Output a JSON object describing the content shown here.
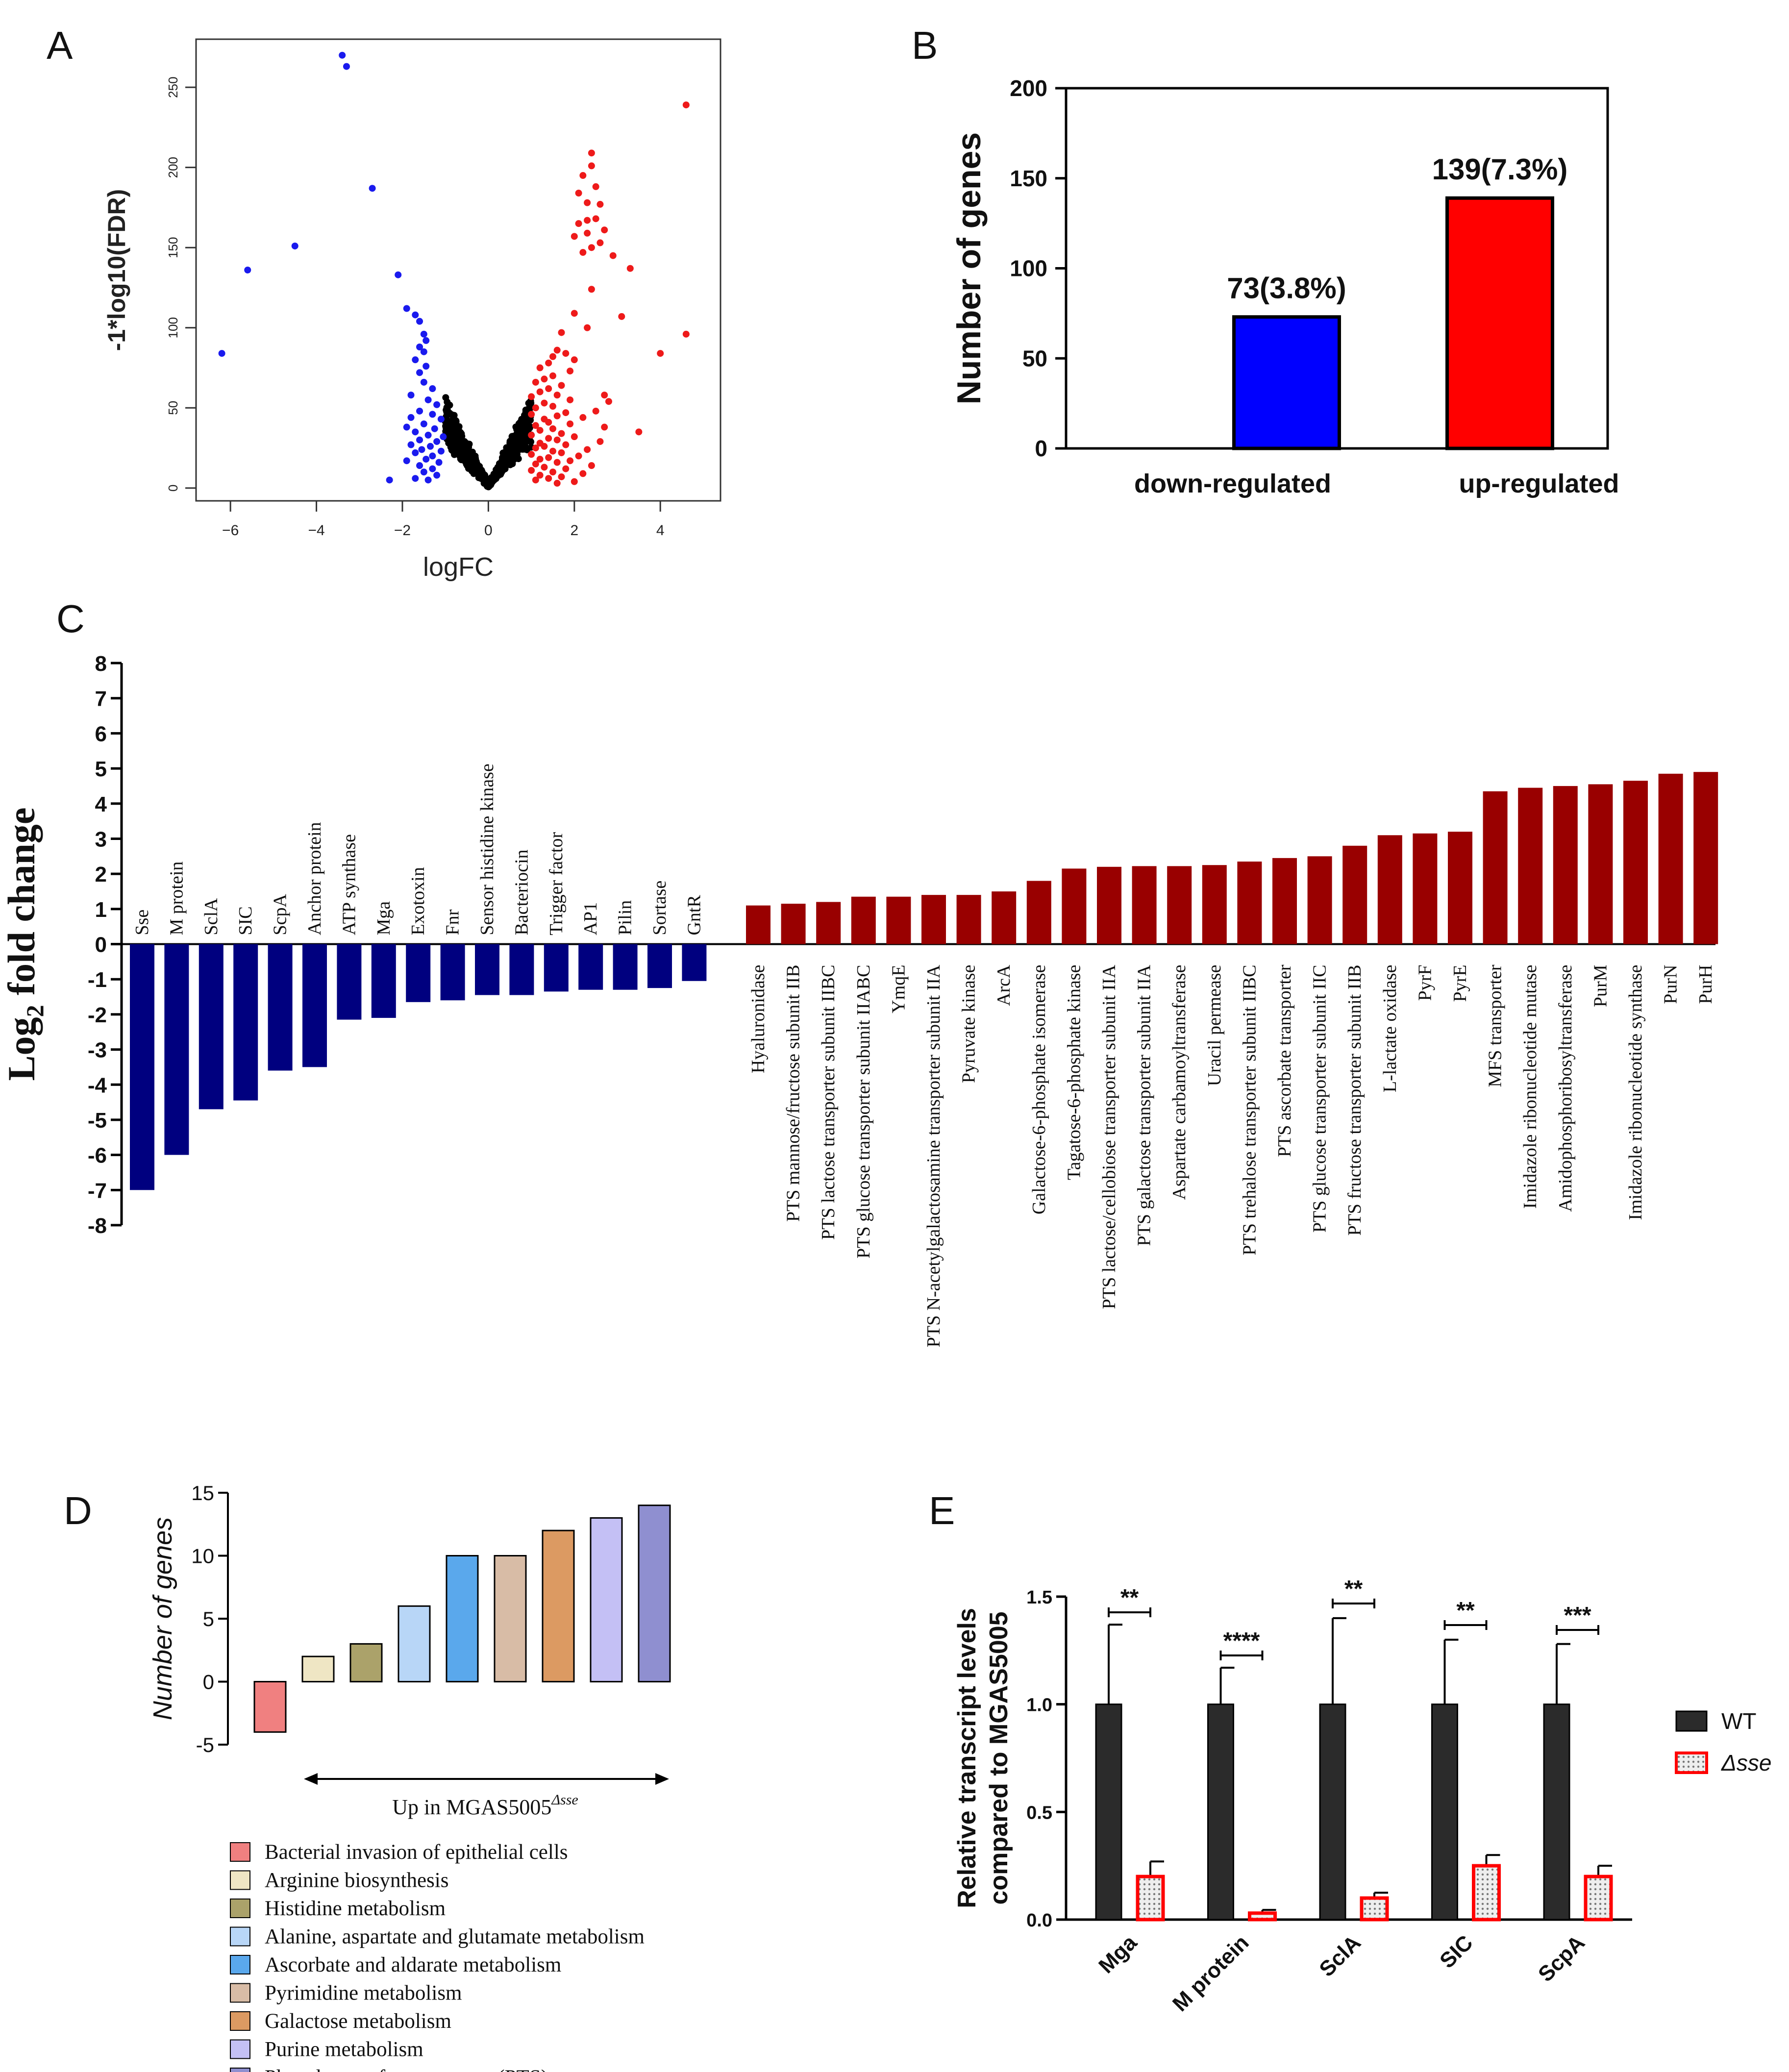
{
  "chart_data": [
    {
      "panel": "A",
      "type": "scatter",
      "xlabel": "logFC",
      "ylabel": "-1*log10(FDR)",
      "xlim": [
        -6.8,
        5.4
      ],
      "ylim": [
        -8,
        280
      ],
      "xticks": [
        -6,
        -4,
        -2,
        0,
        2,
        4
      ],
      "xtick_labels": [
        "−6",
        "−4",
        "−2",
        "0",
        "2",
        "4"
      ],
      "yticks": [
        0,
        50,
        100,
        150,
        200,
        250
      ],
      "ytick_labels": [
        "0",
        "50",
        "100",
        "150",
        "200",
        "250"
      ],
      "colors": {
        "down": "#1a1aee",
        "up": "#ee1a1a",
        "ns": "#000000"
      },
      "series": [
        {
          "name": "down",
          "points": [
            [
              -3.4,
              270
            ],
            [
              -3.3,
              263
            ],
            [
              -2.7,
              187
            ],
            [
              -4.5,
              151
            ],
            [
              -5.6,
              136
            ],
            [
              -6.2,
              84
            ],
            [
              -2.1,
              133
            ],
            [
              -2.3,
              5
            ],
            [
              -1.9,
              112
            ],
            [
              -1.7,
              108
            ],
            [
              -1.6,
              104
            ],
            [
              -1.5,
              96
            ],
            [
              -1.45,
              92
            ],
            [
              -1.6,
              88
            ],
            [
              -1.5,
              85
            ],
            [
              -1.7,
              80
            ],
            [
              -1.45,
              76
            ],
            [
              -1.6,
              72
            ],
            [
              -1.5,
              66
            ],
            [
              -1.3,
              62
            ],
            [
              -1.8,
              58
            ],
            [
              -1.4,
              55
            ],
            [
              -1.2,
              52
            ],
            [
              -1.6,
              48
            ],
            [
              -1.3,
              46
            ],
            [
              -1.8,
              44
            ],
            [
              -1.1,
              43
            ],
            [
              -1.5,
              40
            ],
            [
              -1.9,
              38
            ],
            [
              -1.25,
              37
            ],
            [
              -1.7,
              35
            ],
            [
              -1.4,
              33
            ],
            [
              -1.05,
              32
            ],
            [
              -1.6,
              30
            ],
            [
              -1.2,
              29
            ],
            [
              -1.8,
              27
            ],
            [
              -1.35,
              26
            ],
            [
              -1.55,
              24
            ],
            [
              -1.1,
              23
            ],
            [
              -1.7,
              22
            ],
            [
              -1.3,
              20
            ],
            [
              -1.45,
              18
            ],
            [
              -1.9,
              17
            ],
            [
              -1.15,
              16
            ],
            [
              -1.6,
              14
            ],
            [
              -1.3,
              12
            ],
            [
              -1.5,
              10
            ],
            [
              -1.2,
              8
            ],
            [
              -1.7,
              6
            ],
            [
              -1.4,
              5
            ]
          ]
        },
        {
          "name": "up",
          "points": [
            [
              4.6,
              239
            ],
            [
              2.4,
              209
            ],
            [
              2.4,
              201
            ],
            [
              2.2,
              195
            ],
            [
              2.5,
              188
            ],
            [
              2.1,
              184
            ],
            [
              2.3,
              178
            ],
            [
              2.6,
              177
            ],
            [
              2.5,
              168
            ],
            [
              2.3,
              167
            ],
            [
              2.1,
              165
            ],
            [
              2.7,
              161
            ],
            [
              2.3,
              159
            ],
            [
              2.0,
              157
            ],
            [
              2.6,
              153
            ],
            [
              2.4,
              150
            ],
            [
              2.2,
              147
            ],
            [
              2.9,
              145
            ],
            [
              3.3,
              137
            ],
            [
              2.4,
              124
            ],
            [
              2.0,
              109
            ],
            [
              3.1,
              107
            ],
            [
              4.6,
              96
            ],
            [
              1.7,
              97
            ],
            [
              2.3,
              100
            ],
            [
              4.0,
              84
            ],
            [
              1.6,
              86
            ],
            [
              1.8,
              84
            ],
            [
              1.5,
              82
            ],
            [
              2.0,
              80
            ],
            [
              1.4,
              78
            ],
            [
              1.2,
              75
            ],
            [
              1.9,
              73
            ],
            [
              1.5,
              70
            ],
            [
              1.3,
              68
            ],
            [
              1.1,
              66
            ],
            [
              1.7,
              64
            ],
            [
              1.4,
              62
            ],
            [
              2.7,
              58
            ],
            [
              1.2,
              60
            ],
            [
              1.6,
              58
            ],
            [
              1.0,
              57
            ],
            [
              1.9,
              55
            ],
            [
              2.8,
              54
            ],
            [
              1.3,
              53
            ],
            [
              1.5,
              51
            ],
            [
              1.1,
              50
            ],
            [
              2.5,
              48
            ],
            [
              1.8,
              47
            ],
            [
              1.0,
              46
            ],
            [
              1.6,
              45
            ],
            [
              2.2,
              44
            ],
            [
              1.3,
              43
            ],
            [
              1.4,
              41
            ],
            [
              1.9,
              40
            ],
            [
              1.1,
              39
            ],
            [
              2.7,
              38
            ],
            [
              1.5,
              37
            ],
            [
              1.2,
              36
            ],
            [
              3.5,
              35
            ],
            [
              1.7,
              34
            ],
            [
              1.0,
              33
            ],
            [
              2.0,
              32
            ],
            [
              1.4,
              31
            ],
            [
              1.6,
              30
            ],
            [
              2.6,
              29
            ],
            [
              1.2,
              28
            ],
            [
              1.8,
              27
            ],
            [
              1.3,
              26
            ],
            [
              1.1,
              25
            ],
            [
              2.3,
              24
            ],
            [
              1.5,
              23
            ],
            [
              1.7,
              22
            ],
            [
              1.0,
              21
            ],
            [
              2.1,
              20
            ],
            [
              1.4,
              19
            ],
            [
              1.2,
              18
            ],
            [
              1.9,
              17
            ],
            [
              1.6,
              16
            ],
            [
              1.1,
              15
            ],
            [
              2.4,
              14
            ],
            [
              1.3,
              13
            ],
            [
              1.8,
              12
            ],
            [
              1.0,
              11
            ],
            [
              1.5,
              10
            ],
            [
              2.2,
              9
            ],
            [
              1.2,
              8
            ],
            [
              1.7,
              7
            ],
            [
              1.4,
              6
            ],
            [
              1.1,
              5
            ],
            [
              2.0,
              4
            ],
            [
              1.6,
              3
            ]
          ]
        }
      ]
    },
    {
      "panel": "B",
      "type": "bar",
      "categories": [
        "down-regulated",
        "up-regulated"
      ],
      "values": [
        73,
        139
      ],
      "data_labels": [
        "73(3.8%)",
        "139(7.3%)"
      ],
      "colors": [
        "#0000ff",
        "#ff0000"
      ],
      "ylabel": "Number of genes",
      "ylim": [
        0,
        200
      ],
      "yticks": [
        0,
        50,
        100,
        150,
        200
      ],
      "ytick_labels": [
        "0",
        "50",
        "100",
        "150",
        "200"
      ]
    },
    {
      "panel": "C",
      "type": "bar",
      "ylabel_main": "Log",
      "ylabel_sub": "2",
      "ylabel_rest": " fold change",
      "ylim": [
        -8,
        8
      ],
      "yticks": [
        8,
        7,
        6,
        5,
        4,
        3,
        2,
        1,
        0,
        -1,
        -2,
        -3,
        -4,
        -5,
        -6,
        -7,
        -8
      ],
      "ytick_labels": [
        "8",
        "7",
        "6",
        "5",
        "4",
        "3",
        "2",
        "1",
        "0",
        "-1",
        "-2",
        "-3",
        "-4",
        "-5",
        "-6",
        "-7",
        "-8"
      ],
      "down_color": "#00007f",
      "up_color": "#990000",
      "down_categories": [
        "Sse",
        "M protein",
        "SclA",
        "SIC",
        "ScpA",
        "Anchor protein",
        "ATP synthase",
        "Mga",
        "Exotoxin",
        "Fnr",
        "Sensor histidine kinase",
        "Bacteriocin",
        "Trigger factor",
        "AP1",
        "Pilin",
        "Sortase",
        "GntR"
      ],
      "down_values": [
        -7.0,
        -6.0,
        -4.7,
        -4.45,
        -3.6,
        -3.5,
        -2.15,
        -2.1,
        -1.65,
        -1.6,
        -1.45,
        -1.45,
        -1.35,
        -1.3,
        -1.3,
        -1.25,
        -1.05
      ],
      "up_categories": [
        "Hyaluronidase",
        "PTS mannose/fructose subunit IIB",
        "PTS lactose transporter subunit IIBC",
        "PTS glucose transporter subunit IIABC",
        "YmqE",
        "PTS N-acetylgalactosamine transporter subunit IIA",
        "Pyruvate kinase",
        "ArcA",
        "Galactose-6-phosphate isomerase",
        "Tagatose-6-phosphate kinase",
        "PTS lactose/cellobiose transporter subunit IIA",
        "PTS galactose transporter subunit IIA",
        "Aspartate carbamoyltransferase",
        "Uracil permease",
        "PTS trehalose transporter subunit IIBC",
        "PTS ascorbate transporter",
        "PTS glucose transporter subunit IIC",
        "PTS fructose transporter subunit IIB",
        "L-lactate oxidase",
        "PyrF",
        "PyrE",
        "MFS transporter",
        "Imidazole ribonucleotide mutase",
        "Amidophosphoribosyltransferase",
        "PurM",
        "Imidazole ribonucleotide synthase",
        "PurN",
        "PurH"
      ],
      "up_values": [
        1.1,
        1.15,
        1.2,
        1.35,
        1.35,
        1.4,
        1.4,
        1.5,
        1.8,
        2.15,
        2.2,
        2.22,
        2.22,
        2.25,
        2.35,
        2.45,
        2.5,
        2.8,
        3.1,
        3.15,
        3.2,
        4.35,
        4.45,
        4.5,
        4.55,
        4.65,
        4.85,
        4.9
      ]
    },
    {
      "panel": "D",
      "type": "bar",
      "ylabel": "Number of genes",
      "ylim": [
        -5,
        15
      ],
      "yticks": [
        -5,
        0,
        5,
        10,
        15
      ],
      "ytick_labels": [
        "-5",
        "0",
        "5",
        "10",
        "15"
      ],
      "categories": [
        "Bacterial invasion of epithelial cells",
        "Arginine biosynthesis",
        "Histidine metabolism",
        "Alanine, aspartate and glutamate metabolism",
        "Ascorbate and aldarate metabolism",
        "Pyrimidine metabolism",
        "Galactose metabolism",
        "Purine metabolism",
        "Phosphotransferase system (PTS)"
      ],
      "values": [
        -4,
        2,
        3,
        6,
        10,
        10,
        12,
        13,
        14
      ],
      "colors": [
        "#f08080",
        "#efe6c4",
        "#aba26a",
        "#b8d6f7",
        "#5aa8ec",
        "#d8bca6",
        "#dc9a62",
        "#c4c0f5",
        "#8f8fd0"
      ],
      "annotation_text": "Up in MGAS5005",
      "annotation_sup": "Δsse"
    },
    {
      "panel": "E",
      "type": "bar",
      "ylabel_line1": "Relative transcript levels",
      "ylabel_line2": "compared to MGAS5005",
      "ylim": [
        0,
        1.5
      ],
      "yticks": [
        0,
        0.5,
        1.0,
        1.5
      ],
      "ytick_labels": [
        "0.0",
        "0.5",
        "1.0",
        "1.5"
      ],
      "categories": [
        "Mga",
        "M protein",
        "SclA",
        "SIC",
        "ScpA"
      ],
      "series": [
        {
          "name": "WT",
          "values": [
            1.0,
            1.0,
            1.0,
            1.0,
            1.0
          ],
          "errors": [
            0.37,
            0.17,
            0.4,
            0.3,
            0.28
          ],
          "color": "#2b2b2b"
        },
        {
          "name": "Δsse",
          "values": [
            0.2,
            0.03,
            0.1,
            0.25,
            0.2
          ],
          "errors": [
            0.07,
            0.015,
            0.025,
            0.05,
            0.05
          ],
          "color": "#e8e8e8",
          "edge": "#ff0000"
        }
      ],
      "significance": [
        "**",
        "****",
        "**",
        "**",
        "***"
      ],
      "legend_position": "right"
    }
  ],
  "panel_labels": {
    "a": "A",
    "b": "B",
    "c": "C",
    "d": "D",
    "e": "E"
  }
}
